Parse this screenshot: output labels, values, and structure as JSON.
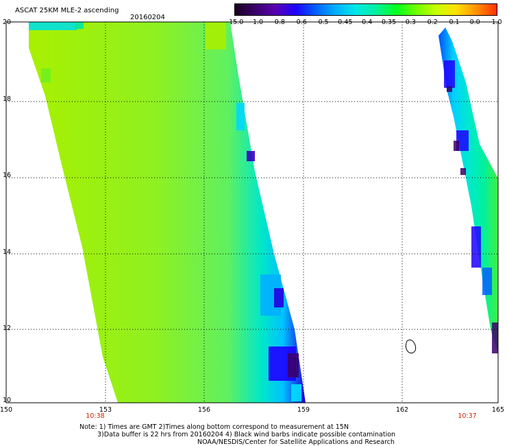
{
  "title": "ASCAT 25KM MLE-2 ascending",
  "date": "20160204",
  "colorbar": {
    "labels": [
      "-15.0",
      "-1.0",
      "-0.8",
      "-0.6",
      "-0.5",
      "-0.45",
      "-0.4",
      "-0.35",
      "-0.3",
      "-0.2",
      "-0.1",
      "0.0",
      "1.0"
    ],
    "colors": [
      "#1a0020",
      "#3a006a",
      "#5a00b0",
      "#1e00ff",
      "#0060ff",
      "#00b0ff",
      "#00e8e8",
      "#00f0a0",
      "#00ff20",
      "#70ff00",
      "#c8ff00",
      "#ffe000",
      "#ff9000",
      "#ff3000"
    ]
  },
  "y_labels": [
    "20",
    "18",
    "16",
    "14",
    "12",
    "10"
  ],
  "x_labels": [
    "150",
    "153",
    "156",
    "159",
    "162",
    "165"
  ],
  "time_labels": [
    "10:38",
    "10:37"
  ],
  "notes": [
    "Note: 1) Times are GMT 2)Times along bottom correspond to measurement at 15N",
    "3)Data buffer is 22 hrs from 20160204 4) Black wind barbs indicate possible contamination",
    "NOAA/NESDIS/Center for Satellite Applications and Research"
  ]
}
